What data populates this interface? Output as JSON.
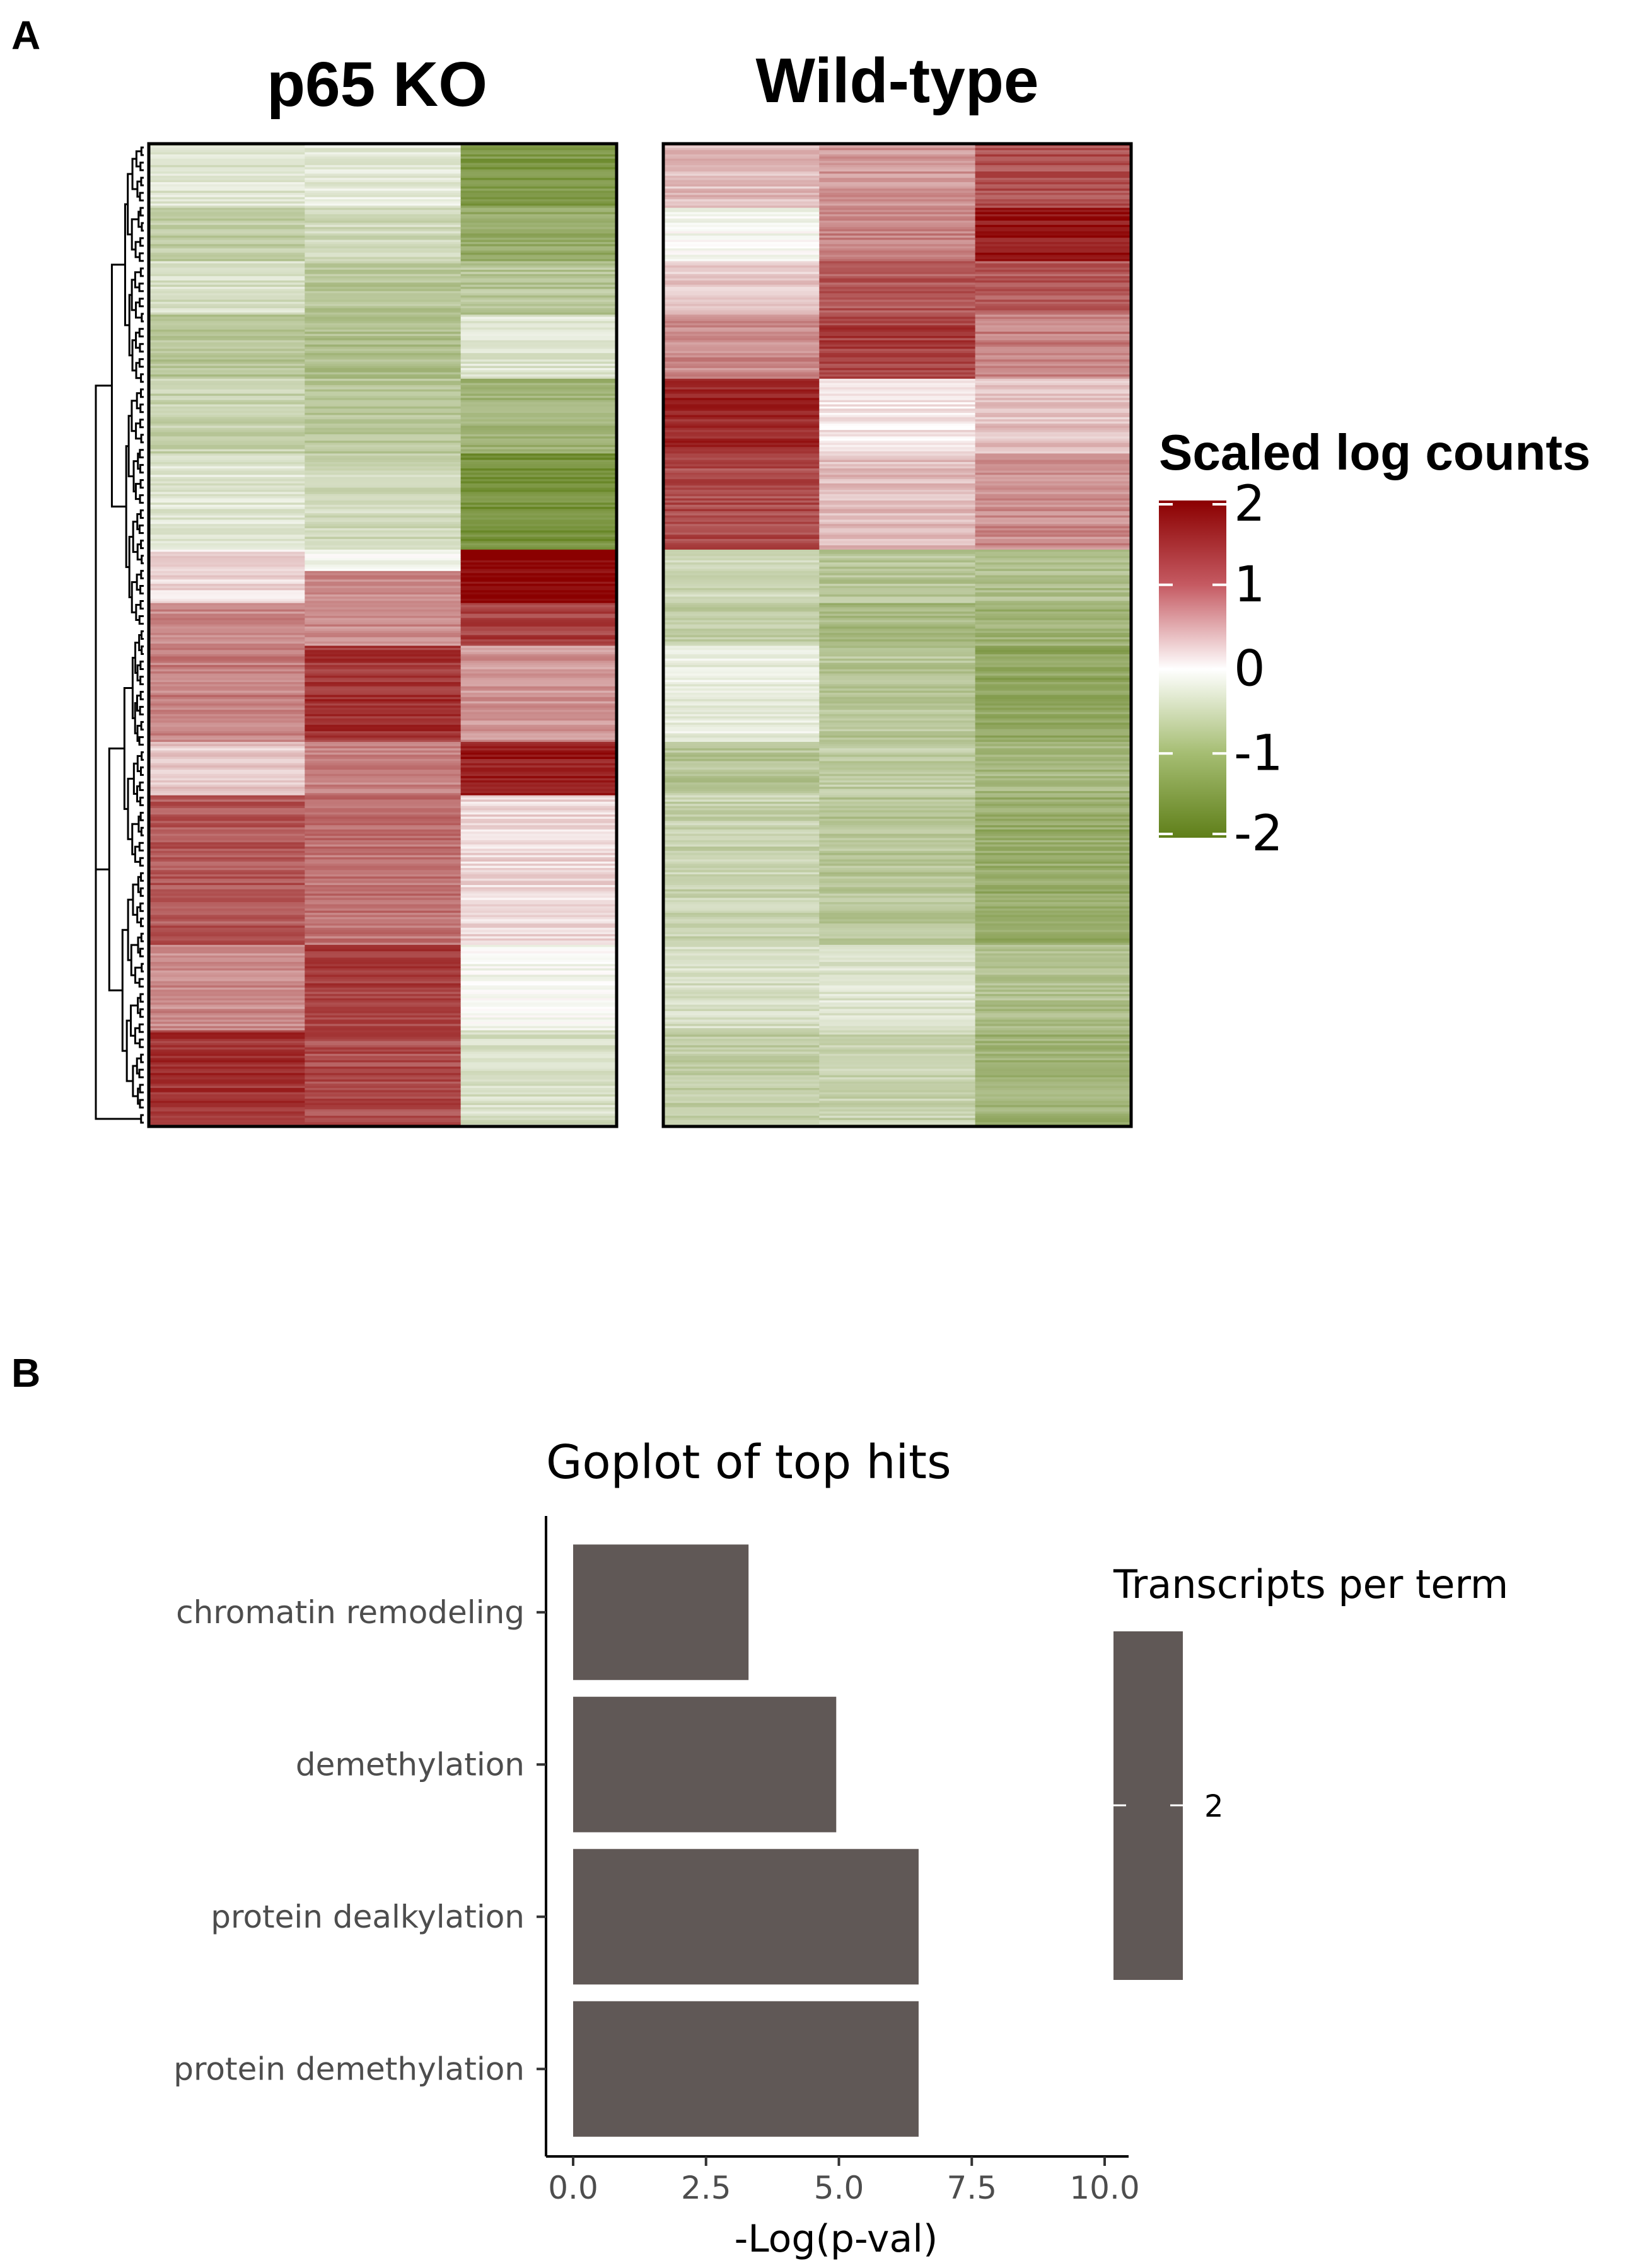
{
  "panels": {
    "a": "A",
    "b": "B"
  },
  "heatmap": {
    "groups": [
      {
        "title": "p65 KO",
        "columns": [
          {
            "segments": [
              {
                "v": -0.4,
                "rows": 30
              },
              {
                "v": -0.8,
                "rows": 25
              },
              {
                "v": -0.5,
                "rows": 25
              },
              {
                "v": -0.9,
                "rows": 30
              },
              {
                "v": -0.7,
                "rows": 35
              },
              {
                "v": -0.4,
                "rows": 45
              },
              {
                "v": 0.3,
                "rows": 25
              },
              {
                "v": 0.9,
                "rows": 20
              },
              {
                "v": 1.0,
                "rows": 45
              },
              {
                "v": 0.4,
                "rows": 25
              },
              {
                "v": 1.3,
                "rows": 70
              },
              {
                "v": 0.9,
                "rows": 40
              },
              {
                "v": 1.6,
                "rows": 45
              }
            ]
          },
          {
            "segments": [
              {
                "v": -0.3,
                "rows": 30
              },
              {
                "v": -0.6,
                "rows": 25
              },
              {
                "v": -0.9,
                "rows": 25
              },
              {
                "v": -1.0,
                "rows": 30
              },
              {
                "v": -0.9,
                "rows": 35
              },
              {
                "v": -0.6,
                "rows": 45
              },
              {
                "v": -0.1,
                "rows": 10
              },
              {
                "v": 0.9,
                "rows": 35
              },
              {
                "v": 1.6,
                "rows": 45
              },
              {
                "v": 1.0,
                "rows": 25
              },
              {
                "v": 1.1,
                "rows": 70
              },
              {
                "v": 1.5,
                "rows": 40
              },
              {
                "v": 1.4,
                "rows": 45
              }
            ]
          },
          {
            "segments": [
              {
                "v": -1.6,
                "rows": 30
              },
              {
                "v": -1.3,
                "rows": 25
              },
              {
                "v": -0.9,
                "rows": 25
              },
              {
                "v": -0.4,
                "rows": 30
              },
              {
                "v": -1.2,
                "rows": 35
              },
              {
                "v": -1.7,
                "rows": 45
              },
              {
                "v": 2.0,
                "rows": 25
              },
              {
                "v": 1.5,
                "rows": 20
              },
              {
                "v": 0.8,
                "rows": 45
              },
              {
                "v": 1.8,
                "rows": 25
              },
              {
                "v": 0.3,
                "rows": 70
              },
              {
                "v": -0.1,
                "rows": 40
              },
              {
                "v": -0.5,
                "rows": 45
              }
            ]
          }
        ]
      },
      {
        "title": "Wild-type",
        "columns": [
          {
            "segments": [
              {
                "v": 0.5,
                "rows": 30
              },
              {
                "v": -0.1,
                "rows": 25
              },
              {
                "v": 0.4,
                "rows": 25
              },
              {
                "v": 0.9,
                "rows": 30
              },
              {
                "v": 1.7,
                "rows": 35
              },
              {
                "v": 1.4,
                "rows": 45
              },
              {
                "v": -0.6,
                "rows": 25
              },
              {
                "v": -0.8,
                "rows": 20
              },
              {
                "v": -0.3,
                "rows": 45
              },
              {
                "v": -0.9,
                "rows": 25
              },
              {
                "v": -0.7,
                "rows": 70
              },
              {
                "v": -0.5,
                "rows": 40
              },
              {
                "v": -0.8,
                "rows": 45
              }
            ]
          },
          {
            "segments": [
              {
                "v": 0.8,
                "rows": 30
              },
              {
                "v": 1.0,
                "rows": 25
              },
              {
                "v": 1.3,
                "rows": 25
              },
              {
                "v": 1.5,
                "rows": 30
              },
              {
                "v": 0.2,
                "rows": 35
              },
              {
                "v": 0.5,
                "rows": 45
              },
              {
                "v": -0.9,
                "rows": 25
              },
              {
                "v": -1.1,
                "rows": 20
              },
              {
                "v": -0.9,
                "rows": 45
              },
              {
                "v": -0.8,
                "rows": 25
              },
              {
                "v": -0.9,
                "rows": 70
              },
              {
                "v": -0.4,
                "rows": 40
              },
              {
                "v": -0.7,
                "rows": 45
              }
            ]
          },
          {
            "segments": [
              {
                "v": 1.4,
                "rows": 30
              },
              {
                "v": 1.8,
                "rows": 25
              },
              {
                "v": 1.3,
                "rows": 25
              },
              {
                "v": 1.0,
                "rows": 30
              },
              {
                "v": 0.5,
                "rows": 35
              },
              {
                "v": 0.9,
                "rows": 45
              },
              {
                "v": -1.0,
                "rows": 25
              },
              {
                "v": -1.2,
                "rows": 20
              },
              {
                "v": -1.4,
                "rows": 45
              },
              {
                "v": -1.1,
                "rows": 25
              },
              {
                "v": -1.3,
                "rows": 70
              },
              {
                "v": -1.0,
                "rows": 40
              },
              {
                "v": -1.2,
                "rows": 45
              }
            ]
          }
        ]
      }
    ],
    "legend": {
      "title": "Scaled log counts",
      "ticks": [
        "2",
        "1",
        "0",
        "-1",
        "-2"
      ],
      "range": [
        -2,
        2
      ]
    },
    "colors": {
      "high": "#8b0000",
      "mid": "#ffffff",
      "low": "#5f7f19"
    }
  },
  "chart_data": {
    "type": "bar",
    "orientation": "horizontal",
    "title": "Goplot of top hits",
    "categories": [
      "chromatin remodeling",
      "demethylation",
      "protein dealkylation",
      "protein demethylation"
    ],
    "values": [
      3.3,
      4.95,
      6.5,
      6.5
    ],
    "xlabel": "-Log(p-val)",
    "xlim": [
      0,
      10
    ],
    "xticks": [
      "0.0",
      "2.5",
      "5.0",
      "7.5",
      "10.0"
    ],
    "bar_color": "#605856",
    "legend": {
      "title": "Transcripts per term",
      "tick": "2"
    }
  }
}
